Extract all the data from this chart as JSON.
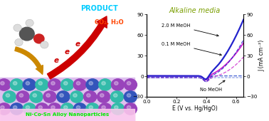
{
  "title": "Alkaline media",
  "title_color": "#7a9e00",
  "xlabel": "E (V vs. Hg/HgO)",
  "ylabel": "J (mA cm⁻²)",
  "xlim": [
    0.0,
    0.65
  ],
  "ylim": [
    -30,
    90
  ],
  "yticks": [
    -30,
    0,
    30,
    60,
    90
  ],
  "xticks": [
    0.0,
    0.2,
    0.4,
    0.6
  ],
  "color_2M": "#2222cc",
  "color_01M": "#cc22cc",
  "color_noMeOH": "#2244cc",
  "bg_color": "#ffffff",
  "product_color": "#00ccff",
  "co2_color": "#ff4400",
  "electron_color": "#cc0000",
  "arrow_red": "#cc0000",
  "arrow_gold": "#cc8800",
  "np_purple": "#9944bb",
  "np_teal": "#33bbaa",
  "np_blue": "#3355bb",
  "label_color": "#00ee00",
  "label_bg": "#ffccee"
}
